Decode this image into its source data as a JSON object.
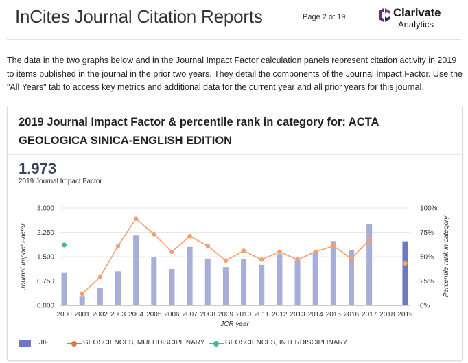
{
  "header": {
    "title": "InCites Journal Citation Reports",
    "page": "Page 2 of 19",
    "logo_name": "Clarivate",
    "logo_sub": "Analytics"
  },
  "intro": "The data in the two graphs below and in the Journal Impact Factor calculation panels represent citation activity in 2019 to items published in the journal in the prior two years. They detail the components of the Journal Impact Factor. Use the \"All Years\" tab to access key metrics and additional data for the current year and all prior years for this journal.",
  "panel": {
    "title": "2019 Journal Impact Factor & percentile rank in category for: ACTA GEOLOGICA SINICA-ENGLISH EDITION",
    "jif_value": "1.973",
    "jif_label": "2019 Journal Impact Factor"
  },
  "colors": {
    "jif": "#a7aed8",
    "jif_current": "#6f78c2",
    "multi": "#f2a072",
    "inter": "#3dbf86"
  },
  "chart_data": {
    "type": "bar",
    "xlabel": "JCR year",
    "ylabel": "Journal Impact Factor",
    "ylabel_right": "Percentile rank in category",
    "ylim": [
      0,
      3.0
    ],
    "ylim_right": [
      0,
      100
    ],
    "yticks": [
      "0.000",
      "0.750",
      "1.500",
      "2.250",
      "3.000"
    ],
    "yticks_right": [
      "0%",
      "25%",
      "50%",
      "75%",
      "100%"
    ],
    "categories": [
      "2000",
      "2001",
      "2002",
      "2003",
      "2004",
      "2005",
      "2006",
      "2007",
      "2008",
      "2009",
      "2010",
      "2011",
      "2012",
      "2013",
      "2014",
      "2015",
      "2016",
      "2017",
      "2018",
      "2019"
    ],
    "series": [
      {
        "name": "JIF",
        "kind": "bar",
        "values": [
          1.0,
          0.27,
          0.55,
          1.05,
          2.15,
          1.48,
          1.12,
          1.8,
          1.44,
          1.18,
          1.42,
          1.25,
          1.58,
          1.39,
          1.64,
          1.98,
          1.7,
          2.5,
          null,
          1.973
        ]
      },
      {
        "name": "GEOSCIENCES, MULTIDISCIPLINARY",
        "kind": "line",
        "values": [
          null,
          12,
          29,
          61,
          89,
          73,
          55,
          71,
          61,
          46,
          56,
          47,
          55,
          47,
          55,
          61,
          48,
          67,
          null,
          43
        ]
      },
      {
        "name": "GEOSCIENCES, INTERDISCIPLINARY",
        "kind": "point",
        "values": [
          62,
          null,
          null,
          null,
          null,
          null,
          null,
          null,
          null,
          null,
          null,
          null,
          null,
          null,
          null,
          null,
          null,
          null,
          null,
          null
        ]
      }
    ],
    "legend": "bottom-left"
  }
}
